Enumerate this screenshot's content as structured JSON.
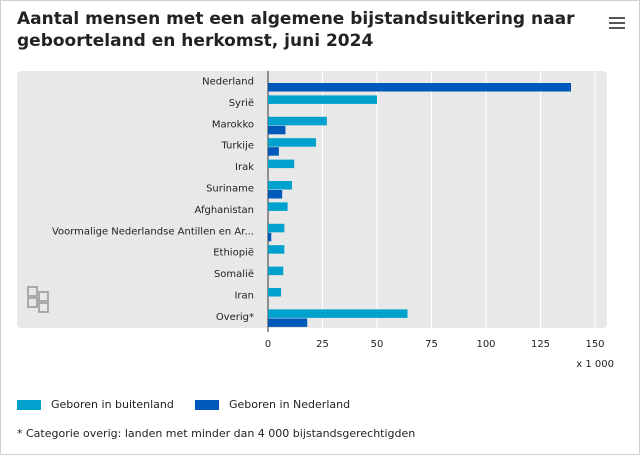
{
  "title": "Aantal mensen met een algemene bijstandsuitkering naar geboorteland en herkomst, juni 2024",
  "menu_icon": "hamburger-menu-icon",
  "logo_icon": "cbs-logo-icon",
  "footnote": "* Categorie overig: landen met minder dan 4 000 bijstandsgerechtigden",
  "colors": {
    "buitenland": "#00a1cd",
    "nederland": "#0058b8",
    "plot_bg": "#e8e8e8",
    "grid": "#ffffff"
  },
  "chart_data": {
    "type": "bar",
    "orientation": "horizontal",
    "title": "Aantal mensen met een algemene bijstandsuitkering naar geboorteland en herkomst, juni 2024",
    "categories": [
      "Nederland",
      "Syrië",
      "Marokko",
      "Turkije",
      "Irak",
      "Suriname",
      "Afghanistan",
      "Voormalige Nederlandse Antillen en Ar...",
      "Ethiopië",
      "Somalië",
      "Iran",
      "Overig*"
    ],
    "series": [
      {
        "name": "Geboren in buitenland",
        "values": [
          0,
          50,
          27,
          22,
          12,
          11,
          9,
          7.5,
          7.5,
          7,
          6,
          64
        ]
      },
      {
        "name": "Geboren in Nederland",
        "values": [
          139,
          0,
          8,
          5,
          0,
          6.5,
          0,
          1.5,
          0,
          0,
          0,
          18
        ]
      }
    ],
    "xlim": [
      0,
      150
    ],
    "xticks": [
      0,
      25,
      50,
      75,
      100,
      125,
      150
    ],
    "xtick_labels": [
      "0",
      "25",
      "50",
      "75",
      "100",
      "125",
      "150"
    ],
    "xunit": "x 1 000",
    "xlabel": "",
    "ylabel": "",
    "legend_position": "bottom-left",
    "grid": true
  }
}
